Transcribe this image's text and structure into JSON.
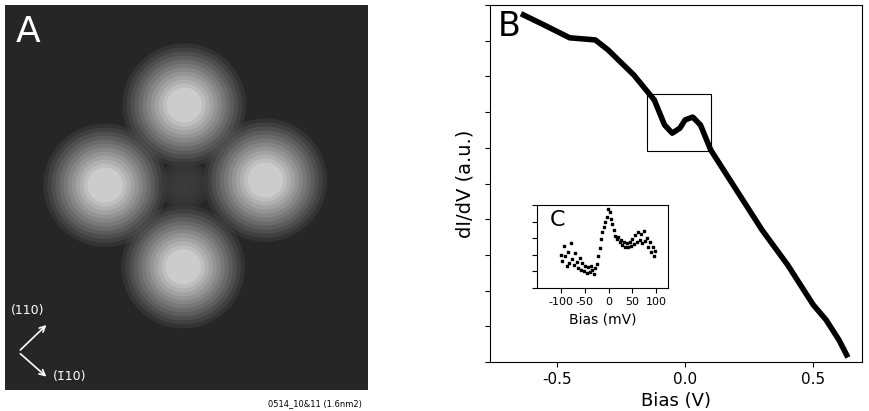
{
  "image_panel": {
    "label": "A",
    "directions": [
      "(110)",
      "(1̄10)"
    ],
    "caption": "0514_10&11 (1.6nm2)"
  },
  "chart_data": [
    {
      "type": "line",
      "panel_label": "B",
      "x_label": "Bias (V)",
      "y_label": "dI/dV (a.u.)",
      "x": [
        -0.63,
        -0.55,
        -0.45,
        -0.35,
        -0.3,
        -0.2,
        -0.12,
        -0.08,
        -0.05,
        -0.02,
        0.0,
        0.03,
        0.06,
        0.1,
        0.15,
        0.2,
        0.3,
        0.4,
        0.5,
        0.55,
        0.6,
        0.63
      ],
      "values": [
        9.72,
        9.44,
        9.08,
        9.02,
        8.74,
        8.04,
        7.34,
        6.64,
        6.41,
        6.55,
        6.78,
        6.86,
        6.64,
        5.94,
        5.38,
        4.82,
        3.7,
        2.72,
        1.6,
        1.18,
        0.62,
        0.2
      ],
      "color": "#000000",
      "line_style": "solid",
      "xlim": [
        -0.76,
        0.69
      ],
      "ylim": [
        0,
        10
      ],
      "xticks": [
        -0.5,
        {
          "value": 0,
          "label": "0.0"
        },
        0.5
      ],
      "yticks": [
        0,
        1,
        2,
        3,
        4,
        5,
        6,
        7,
        8,
        9,
        10
      ],
      "tick_labels": "x",
      "box": {
        "x": [
          -0.15,
          0.1
        ],
        "y": [
          5.9,
          7.5
        ]
      }
    },
    {
      "type": "scatter",
      "panel_label": "C",
      "x_label": "Bias (mV)",
      "x": [
        -100,
        -97,
        -94,
        -91,
        -88,
        -85,
        -82,
        -79,
        -76,
        -73,
        -70,
        -67,
        -64,
        -61,
        -58,
        -55,
        -52,
        -49,
        -46,
        -43,
        -40,
        -37,
        -34,
        -31,
        -28,
        -25,
        -22,
        -19,
        -16,
        -13,
        -10,
        -7,
        -4,
        -1,
        2,
        5,
        8,
        11,
        14,
        17,
        20,
        23,
        26,
        29,
        32,
        35,
        38,
        41,
        44,
        47,
        50,
        53,
        56,
        59,
        62,
        65,
        68,
        71,
        74,
        77,
        80,
        83,
        86,
        89,
        92,
        95,
        98
      ],
      "values": [
        4.0,
        3.2,
        5.1,
        3.8,
        2.6,
        4.4,
        3.0,
        5.4,
        3.5,
        2.8,
        4.2,
        3.1,
        2.4,
        3.6,
        2.2,
        3.0,
        2.0,
        2.7,
        1.8,
        2.5,
        1.9,
        2.6,
        2.1,
        1.7,
        2.4,
        2.9,
        3.8,
        4.8,
        5.9,
        6.8,
        7.4,
        8.0,
        8.6,
        9.6,
        9.2,
        8.4,
        7.8,
        7.0,
        6.3,
        5.9,
        6.2,
        5.5,
        5.8,
        5.2,
        5.6,
        5.0,
        5.4,
        4.9,
        5.6,
        5.1,
        5.9,
        5.3,
        6.4,
        5.6,
        6.8,
        5.8,
        6.5,
        5.4,
        6.9,
        5.7,
        6.0,
        4.9,
        5.5,
        4.4,
        5.0,
        3.8,
        4.5
      ],
      "color": "#000000",
      "marker": "square",
      "xlim": [
        -150,
        125
      ],
      "ylim": [
        0,
        10
      ],
      "xticks": [
        -100,
        -50,
        0,
        50,
        100
      ],
      "yticks": [
        0,
        2,
        4,
        6,
        8,
        10
      ],
      "tick_labels": "x"
    }
  ]
}
